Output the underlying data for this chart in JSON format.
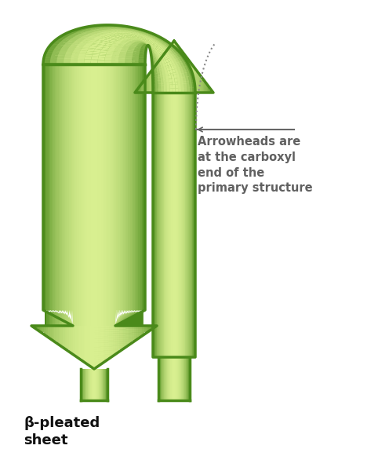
{
  "background_color": "#ffffff",
  "arrow_dark_green": "#4a8a1a",
  "arrow_mid_green": "#6ab020",
  "arrow_light_green": "#b8d860",
  "arrow_lightest_green": "#d8ef90",
  "label_color": "#606060",
  "label_text": "Arrowheads are\nat the carboxyl\nend of the\nprimary structure",
  "beta_label": "β-pleated\nsheet",
  "beta_label_color": "#111111",
  "line_color": "#666666",
  "dot_line_color": "#888888",
  "fig_width": 4.82,
  "fig_height": 5.86,
  "dpi": 100
}
